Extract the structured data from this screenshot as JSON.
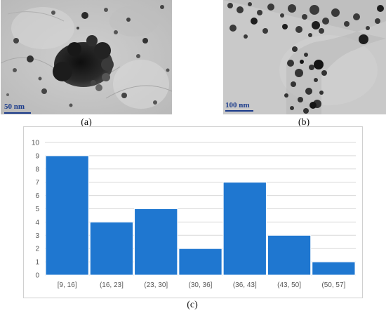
{
  "figure": {
    "panel_a": {
      "caption": "(a)",
      "scale_bar_label": "50 nm"
    },
    "panel_b": {
      "caption": "(b)",
      "scale_bar_label": "100 nm"
    },
    "panel_c": {
      "caption": "(c)"
    }
  },
  "colors": {
    "bar_fill": "#1f77d0",
    "gridline": "#d9d9d9",
    "axis_text": "#595959",
    "scale_bar": "#1a3a8a",
    "tem_background": "#c4c4c4"
  },
  "chart_data": {
    "type": "bar",
    "categories": [
      "[9, 16]",
      "(16, 23]",
      "(23, 30]",
      "(30, 36]",
      "(36, 43]",
      "(43, 50]",
      "(50, 57]"
    ],
    "values": [
      9,
      4,
      5,
      2,
      7,
      3,
      1
    ],
    "ylim": [
      0,
      10
    ],
    "yticks": [
      0,
      1,
      2,
      3,
      4,
      5,
      6,
      7,
      8,
      9,
      10
    ],
    "grid": true,
    "title": "",
    "xlabel": "",
    "ylabel": ""
  }
}
